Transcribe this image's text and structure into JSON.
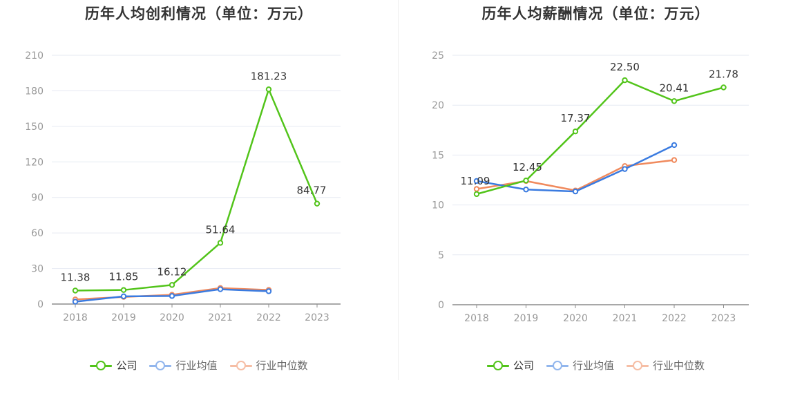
{
  "colors": {
    "company": "#52c41a",
    "industry_avg": "#3a7be0",
    "industry_median": "#f08a5d",
    "grid": "#e6eaf2",
    "axis": "#8c8c8c",
    "label": "#333333"
  },
  "legend": [
    {
      "label": "公司",
      "color": "#52c41a",
      "icon": "circle-line-icon"
    },
    {
      "label": "行业均值",
      "color": "#3a7be0",
      "icon": "circle-line-icon"
    },
    {
      "label": "行业中位数",
      "color": "#f08a5d",
      "icon": "circle-line-icon"
    }
  ],
  "chart_data": [
    {
      "type": "line",
      "title": "历年人均创利情况（单位：万元）",
      "categories": [
        "2018",
        "2019",
        "2020",
        "2021",
        "2022",
        "2023"
      ],
      "yticks": [
        "0",
        "30",
        "60",
        "90",
        "120",
        "150",
        "180",
        "210"
      ],
      "ylim": [
        0,
        210
      ],
      "series": [
        {
          "name": "公司",
          "values": [
            11.38,
            11.85,
            16.12,
            51.64,
            181.23,
            84.77
          ],
          "labels": [
            "11.38",
            "11.85",
            "16.12",
            "51.64",
            "181.23",
            "84.77"
          ]
        },
        {
          "name": "行业均值",
          "values": [
            2.0,
            6.5,
            6.8,
            12.5,
            10.8,
            null
          ]
        },
        {
          "name": "行业中位数",
          "values": [
            3.9,
            6.0,
            7.8,
            13.5,
            11.9,
            null
          ]
        }
      ]
    },
    {
      "type": "line",
      "title": "历年人均薪酬情况（单位：万元）",
      "categories": [
        "2018",
        "2019",
        "2020",
        "2021",
        "2022",
        "2023"
      ],
      "yticks": [
        "0",
        "5",
        "10",
        "15",
        "20",
        "25"
      ],
      "ylim": [
        0,
        25
      ],
      "series": [
        {
          "name": "公司",
          "values": [
            11.09,
            12.45,
            17.37,
            22.5,
            20.41,
            21.78
          ],
          "labels": [
            "11.09",
            "12.45",
            "17.37",
            "22.50",
            "20.41",
            "21.78"
          ]
        },
        {
          "name": "行业均值",
          "values": [
            12.4,
            11.55,
            11.35,
            13.6,
            16.0,
            null
          ]
        },
        {
          "name": "行业中位数",
          "values": [
            11.6,
            12.4,
            11.45,
            13.9,
            14.5,
            null
          ]
        }
      ]
    }
  ]
}
